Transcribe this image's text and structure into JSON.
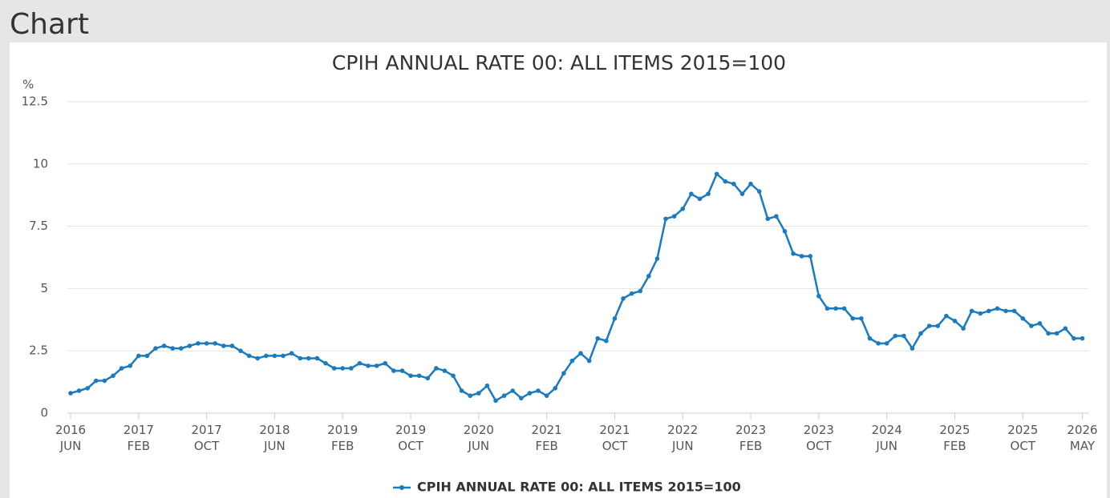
{
  "page": {
    "heading": "Chart"
  },
  "chart_data": {
    "type": "line",
    "title": "CPIH ANNUAL RATE 00: ALL ITEMS 2015=100",
    "y_unit": "%",
    "ylim": [
      0,
      12.5
    ],
    "yticks": [
      0,
      2.5,
      5,
      7.5,
      10,
      12.5
    ],
    "grid": true,
    "categories": [
      "2016\nJUN",
      null,
      null,
      null,
      null,
      null,
      null,
      null,
      "2017\nFEB",
      null,
      null,
      null,
      null,
      null,
      null,
      null,
      "2017\nOCT",
      null,
      null,
      null,
      null,
      null,
      null,
      null,
      "2018\nJUN",
      null,
      null,
      null,
      null,
      null,
      null,
      null,
      "2019\nFEB",
      null,
      null,
      null,
      null,
      null,
      null,
      null,
      "2019\nOCT",
      null,
      null,
      null,
      null,
      null,
      null,
      null,
      "2020\nJUN",
      null,
      null,
      null,
      null,
      null,
      null,
      null,
      "2021\nFEB",
      null,
      null,
      null,
      null,
      null,
      null,
      null,
      "2021\nOCT",
      null,
      null,
      null,
      null,
      null,
      null,
      null,
      "2022\nJUN",
      null,
      null,
      null,
      null,
      null,
      null,
      null,
      "2023\nFEB",
      null,
      null,
      null,
      null,
      null,
      null,
      null,
      "2023\nOCT",
      null,
      null,
      null,
      null,
      null,
      null,
      null,
      "2024\nJUN",
      null,
      null,
      null,
      null,
      null,
      null,
      null,
      "2025\nFEB",
      null,
      null,
      null,
      null,
      null,
      null,
      null,
      "2025\nOCT",
      null,
      null,
      null,
      null,
      null,
      null,
      "2026\nMAY"
    ],
    "series": [
      {
        "name": "CPIH ANNUAL RATE 00: ALL ITEMS 2015=100",
        "color": "#1a7bbf",
        "values": [
          0.8,
          0.9,
          1.0,
          1.3,
          1.3,
          1.5,
          1.8,
          1.9,
          2.3,
          2.3,
          2.6,
          2.7,
          2.6,
          2.6,
          2.7,
          2.8,
          2.8,
          2.8,
          2.7,
          2.7,
          2.5,
          2.3,
          2.2,
          2.3,
          2.3,
          2.3,
          2.4,
          2.2,
          2.2,
          2.2,
          2.0,
          1.8,
          1.8,
          1.8,
          2.0,
          1.9,
          1.9,
          2.0,
          1.7,
          1.7,
          1.5,
          1.5,
          1.4,
          1.8,
          1.7,
          1.5,
          0.9,
          0.7,
          0.8,
          1.1,
          0.5,
          0.7,
          0.9,
          0.6,
          0.8,
          0.9,
          0.7,
          1.0,
          1.6,
          2.1,
          2.4,
          2.1,
          3.0,
          2.9,
          3.8,
          4.6,
          4.8,
          4.9,
          5.5,
          6.2,
          7.8,
          7.9,
          8.2,
          8.8,
          8.6,
          8.8,
          9.6,
          9.3,
          9.2,
          8.8,
          9.2,
          8.9,
          7.8,
          7.9,
          7.3,
          6.4,
          6.3,
          6.3,
          4.7,
          4.2,
          4.2,
          4.2,
          3.8,
          3.8,
          3.0,
          2.8,
          2.8,
          3.1,
          3.1,
          2.6,
          3.2,
          3.5,
          3.5,
          3.9,
          3.7,
          3.4,
          4.1,
          4.0,
          4.1,
          4.2,
          4.1,
          4.1,
          3.8,
          3.5,
          3.6,
          3.2,
          3.2,
          3.4,
          3.0,
          3.0
        ]
      }
    ]
  }
}
